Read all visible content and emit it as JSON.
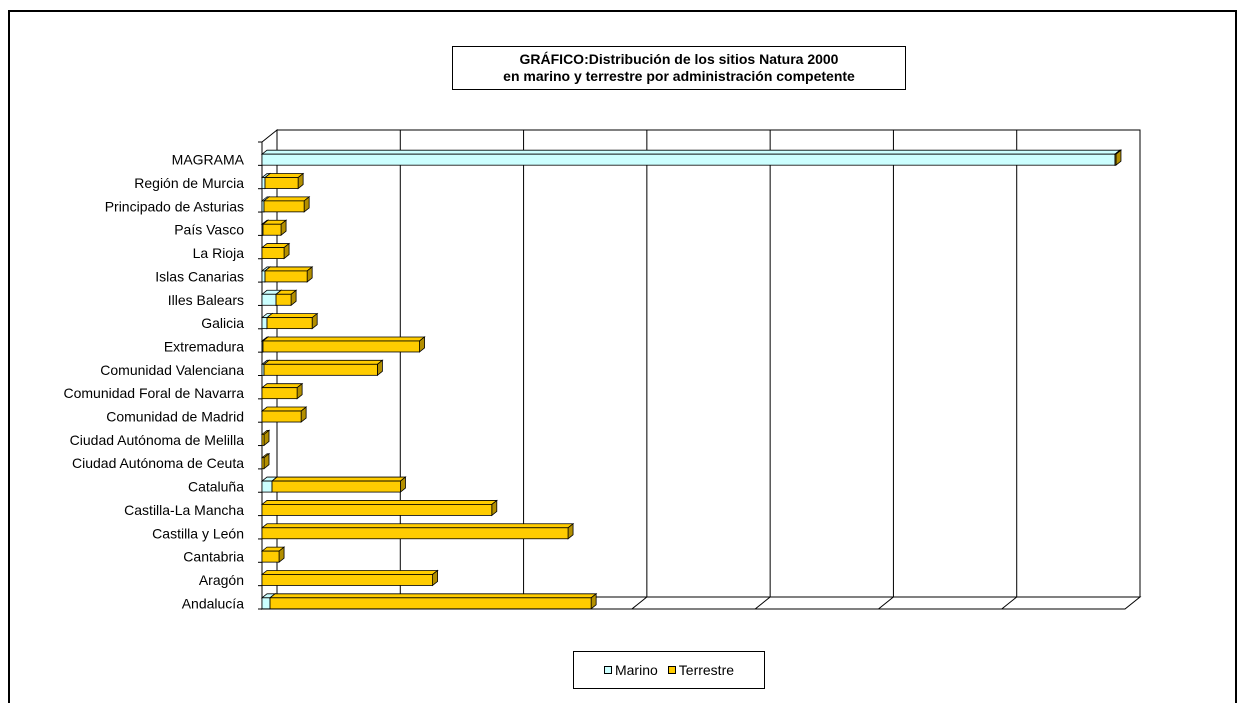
{
  "colors": {
    "marino": "#ccffff",
    "terrestre": "#ffcc00",
    "terrestre_side": "#b38f00",
    "marino_side": "#99cccc",
    "grid": "#000000"
  },
  "chart_data": {
    "type": "bar",
    "orientation": "horizontal",
    "stacked": true,
    "title": [
      "GRÁFICO:Distribución de los sitios Natura 2000",
      "en marino y terrestre por administración competente"
    ],
    "categories": [
      "MAGRAMA",
      "Región de Murcia",
      "Principado de Asturias",
      "País Vasco",
      "La Rioja",
      "Islas Canarias",
      "Illes Balears",
      "Galicia",
      "Extremadura",
      "Comunidad Valenciana",
      "Comunidad Foral de Navarra",
      "Comunidad de Madrid",
      "Ciudad Autónoma de Melilla",
      "Ciudad Autónoma de Ceuta",
      "Cataluña",
      "Castilla-La Mancha",
      "Castilla y León",
      "Cantabria",
      "Aragón",
      "Andalucía"
    ],
    "series": [
      {
        "name": "Marino",
        "values": [
          850,
          3,
          2,
          1,
          0,
          3,
          14,
          5,
          1,
          2,
          0,
          0,
          0,
          0,
          10,
          0,
          0,
          0,
          0,
          8
        ]
      },
      {
        "name": "Terrestre",
        "values": [
          0,
          33,
          40,
          18,
          22,
          42,
          15,
          45,
          156,
          113,
          35,
          39,
          2,
          2,
          128,
          229,
          305,
          17,
          170,
          320
        ]
      }
    ],
    "xlim": [
      0,
      860
    ],
    "x_gridlines": 7,
    "grid": true,
    "style": "3d",
    "legend_position": "bottom"
  }
}
